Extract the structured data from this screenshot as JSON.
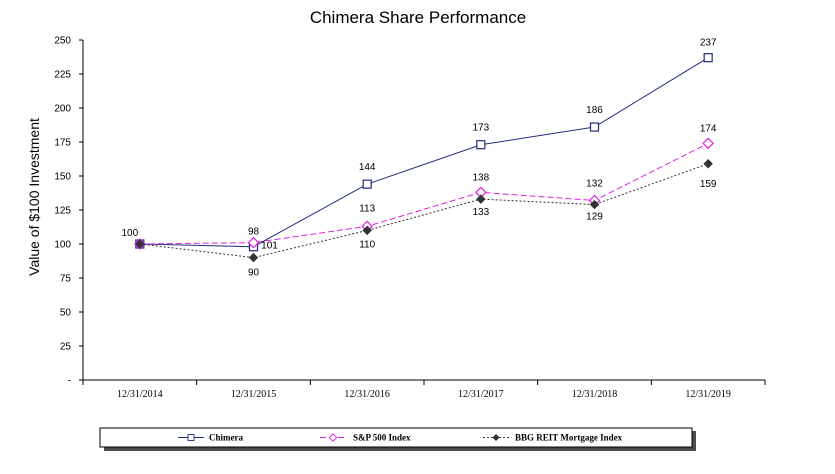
{
  "chart_data": {
    "type": "line",
    "title": "Chimera Share Performance",
    "ylabel": "Value of $100 Investment",
    "xlabel": "",
    "categories": [
      "12/31/2014",
      "12/31/2015",
      "12/31/2016",
      "12/31/2017",
      "12/31/2018",
      "12/31/2019"
    ],
    "ylim": [
      0,
      250
    ],
    "yticks": [
      "-",
      "25",
      "50",
      "75",
      "100",
      "125",
      "150",
      "175",
      "200",
      "225",
      "250"
    ],
    "grid": false,
    "legend_position": "bottom",
    "series": [
      {
        "name": "Chimera",
        "values": [
          100,
          98,
          144,
          173,
          186,
          237
        ],
        "labels": [
          "100",
          "98",
          "144",
          "173",
          "186",
          "237"
        ],
        "color": "#1f2a7a",
        "marker": "square",
        "dash": "solid"
      },
      {
        "name": "S&P 500 Index",
        "values": [
          100,
          101,
          113,
          138,
          132,
          174
        ],
        "labels": [
          "",
          "101",
          "113",
          "138",
          "132",
          "174"
        ],
        "color": "#e020e0",
        "marker": "diamond",
        "dash": "dashed"
      },
      {
        "name": "BBG REIT Mortgage Index",
        "values": [
          100,
          90,
          110,
          133,
          129,
          159
        ],
        "labels": [
          "",
          "90",
          "110",
          "133",
          "129",
          "159"
        ],
        "color": "#333333",
        "marker": "diamond-filled",
        "dash": "dotted"
      }
    ]
  }
}
